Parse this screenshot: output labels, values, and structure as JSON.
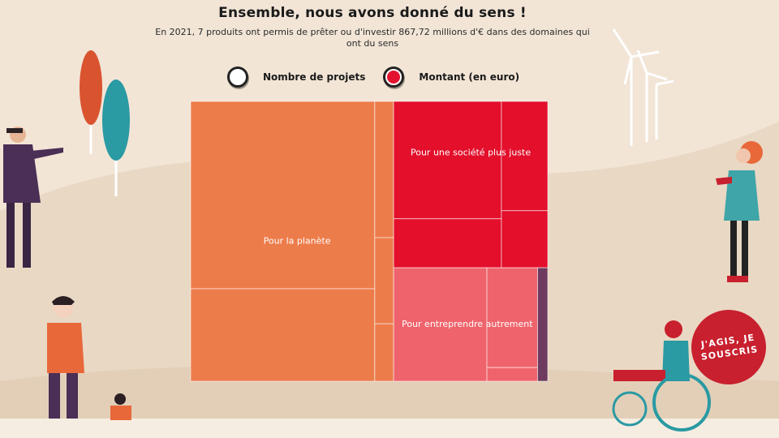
{
  "header": {
    "title": "Ensemble, nous avons donné du sens !",
    "subtitle": "En 2021, 7 produits ont permis de prêter ou d'investir 867,72 millions d'€ dans des domaines qui ont du sens"
  },
  "legend": {
    "projects_label": "Nombre de projets",
    "amount_label": "Montant (en euro)",
    "selected": "amount"
  },
  "cta": {
    "label": "J'AGIS, JE SOUSCRIS"
  },
  "colors": {
    "planete": "#ed7c4b",
    "societe": "#e30f2b",
    "entreprendre": "#ef646c",
    "autre": "#6e3a5f",
    "background": "#f2e5d6"
  },
  "chart_data": {
    "type": "treemap",
    "title": "Ensemble, nous avons donné du sens !",
    "measure": "Montant (en euro)",
    "groups": [
      {
        "name": "Pour la planète",
        "children": [
          {
            "value": 300
          },
          {
            "value": 148
          },
          {
            "value": 32
          },
          {
            "value": 14
          }
        ]
      },
      {
        "name": "Pour une société plus juste",
        "children": [
          {
            "value": 110
          },
          {
            "value": 46
          },
          {
            "value": 44
          },
          {
            "value": 23
          }
        ]
      },
      {
        "name": "Pour entreprendre autrement",
        "children": [
          {
            "value": 92
          },
          {
            "value": 44
          },
          {
            "value": 6
          }
        ]
      },
      {
        "name": "",
        "children": [
          {
            "value": 10
          }
        ]
      }
    ]
  }
}
